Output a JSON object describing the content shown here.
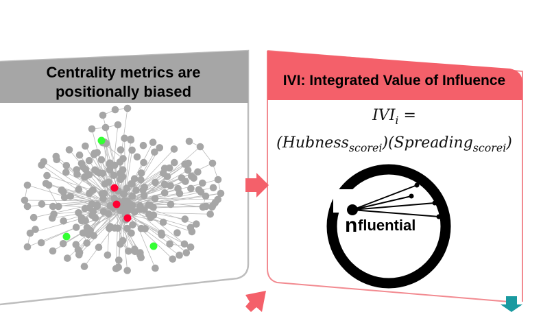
{
  "left_panel": {
    "title_line1": "Centrality metrics are",
    "title_line2": "positionally biased",
    "header_color": "#a6a6a6",
    "node_color": "#a6a6a6",
    "highlight_red": "#ff0033",
    "highlight_green": "#33ff33"
  },
  "right_panel": {
    "title": "IVI: Integrated Value of Influence",
    "header_color": "#f4606a",
    "formula_lhs": "IVI",
    "formula_lhs_sub": "i",
    "formula_equals": " =",
    "term1_open": "(Hubness",
    "term1_sub": "score",
    "term1_sub2": "i",
    "term1_close": ")",
    "term2_open": "(Spreading",
    "term2_sub": "score",
    "term2_sub2": "i",
    "term2_close": ")"
  },
  "logo": {
    "initial": "n",
    "word": "fluential"
  },
  "arrows": {
    "pink": "#f4606a",
    "teal": "#1a9aa0"
  }
}
